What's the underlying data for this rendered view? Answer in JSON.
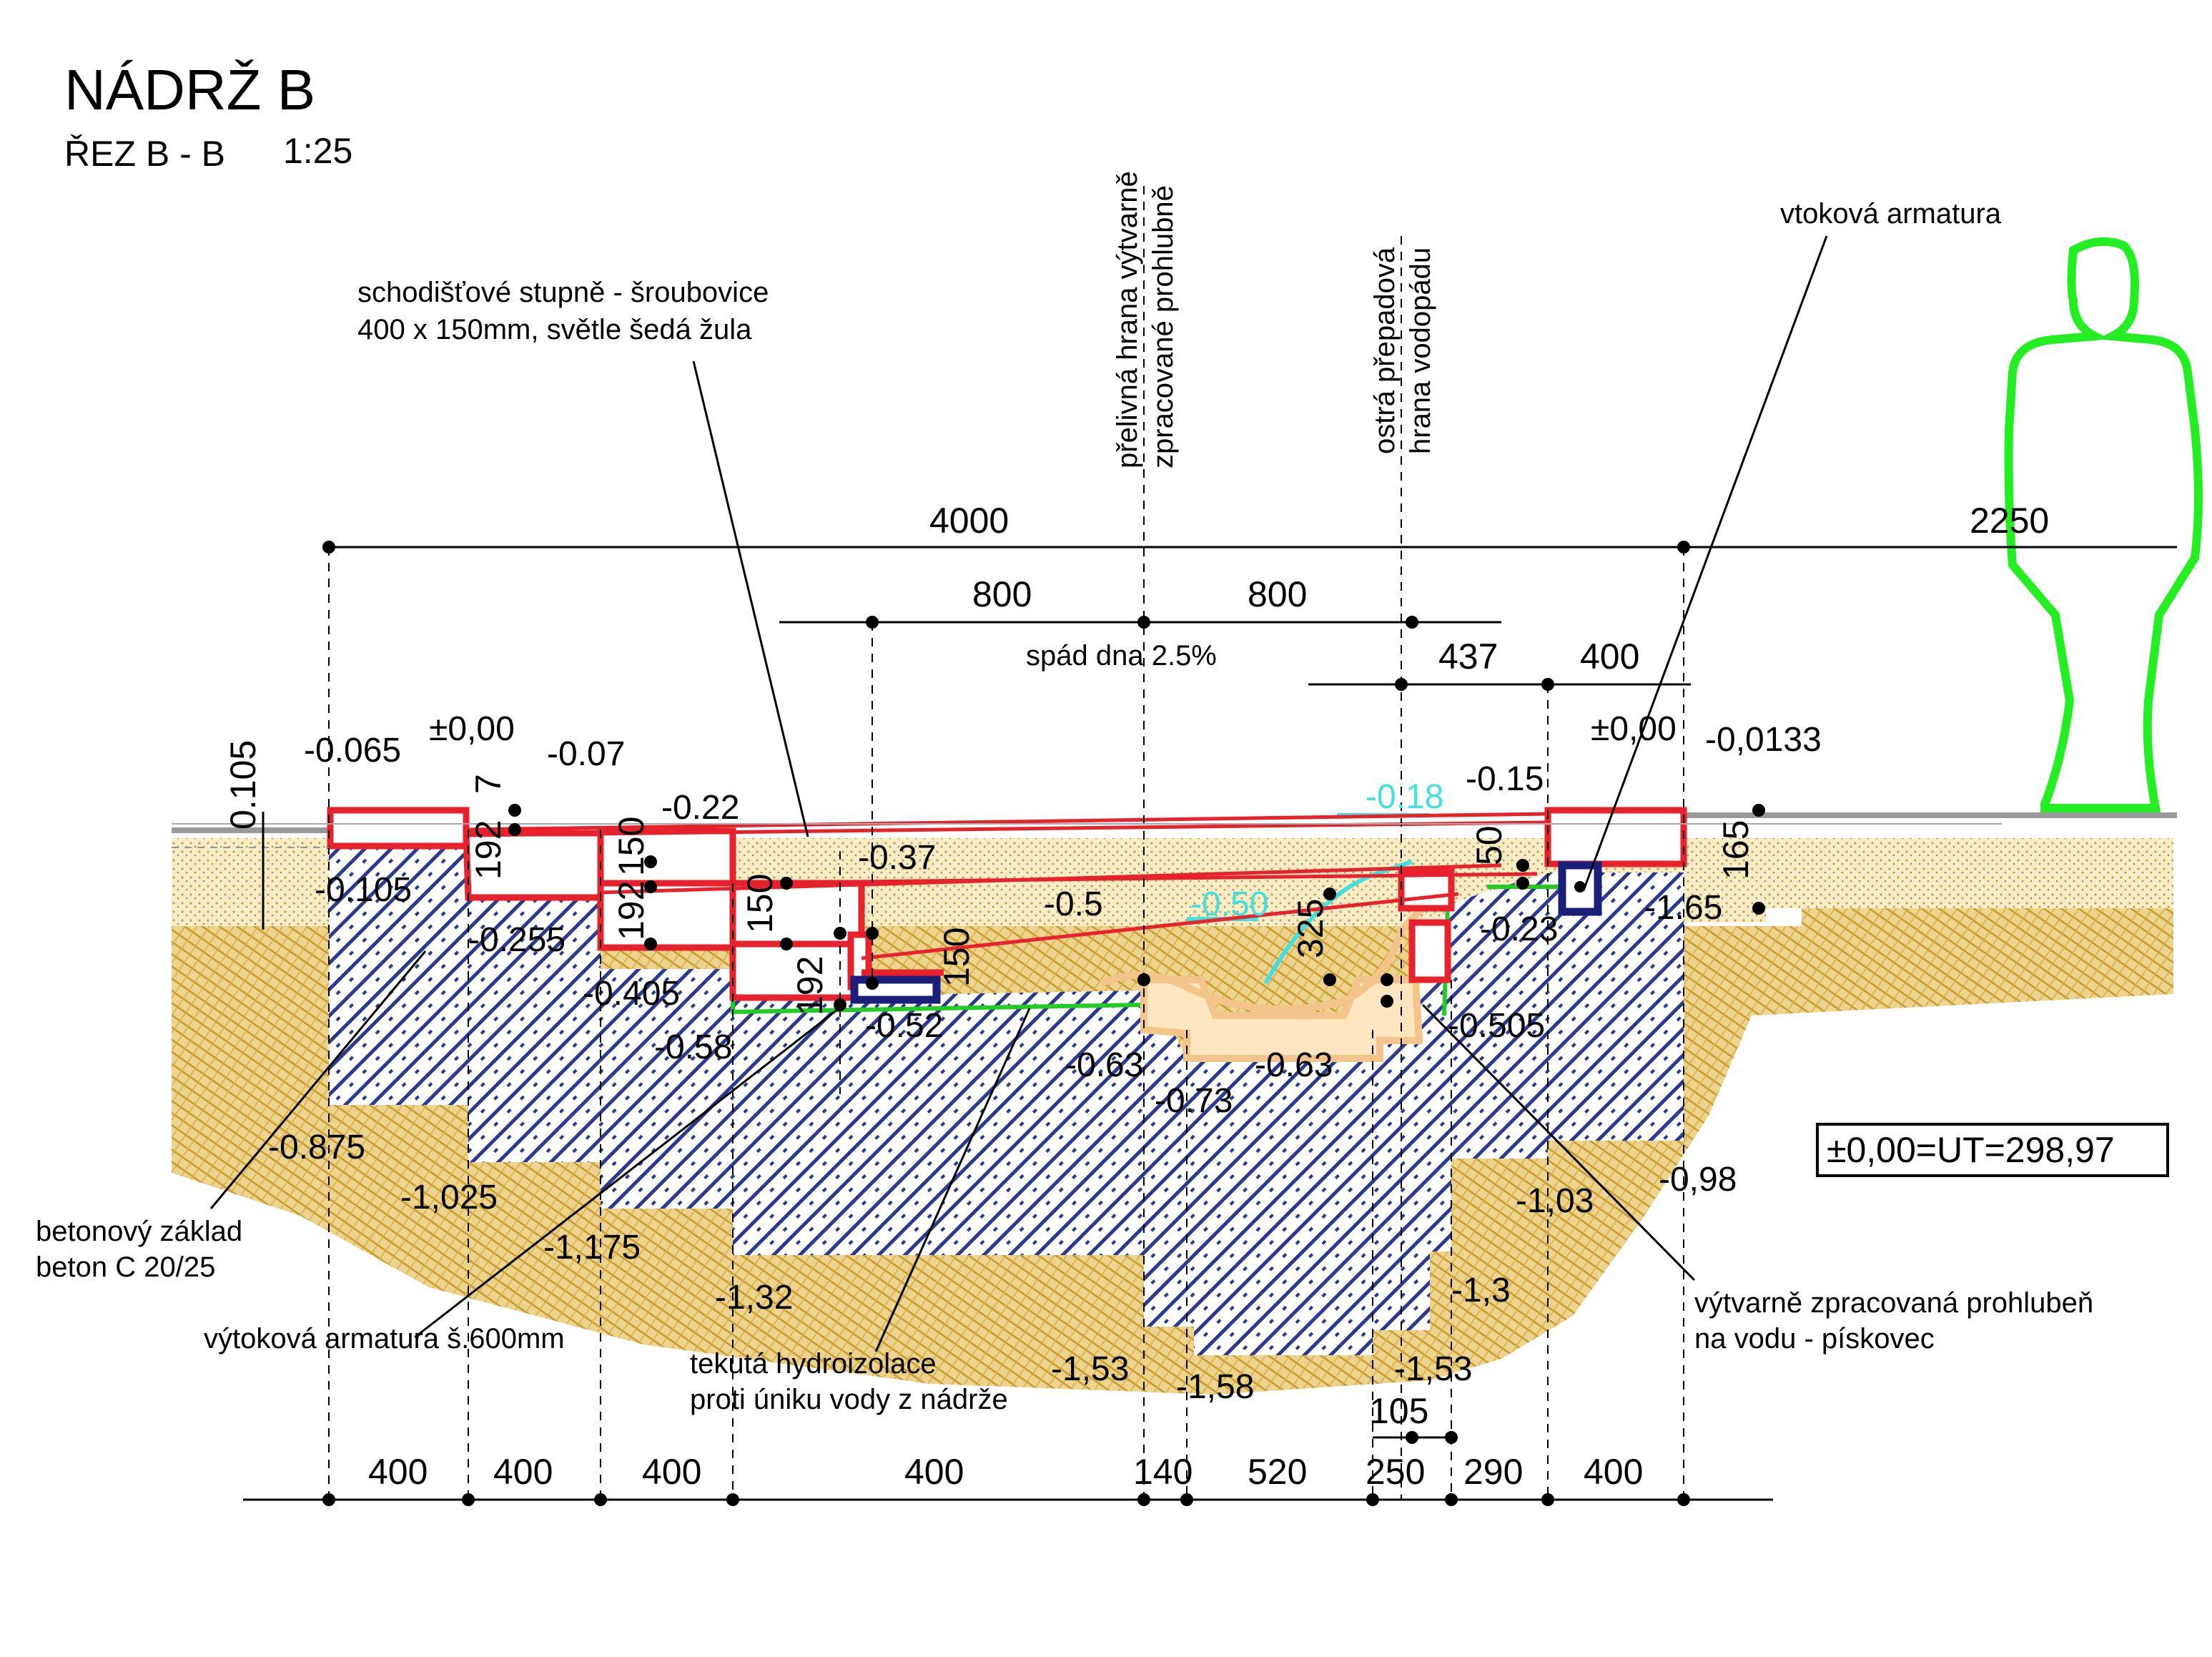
{
  "title": {
    "main": "NÁDRŽ B",
    "section": "ŘEZ B - B",
    "scale": "1:25"
  },
  "colors": {
    "step_outline": "#e8222c",
    "concrete_hatch": "#2b3a8f",
    "soil": "#d9b65c",
    "sand": "#e8d49a",
    "waterproofing": "#22cc22",
    "human": "#22ee22",
    "cyan": "#44e0e0",
    "fitting": "#1b1f7a",
    "sandstone": "#f4c58a"
  },
  "reference_note": "±0,00=UT=298,97",
  "annotations": {
    "stairs_line1": "schodišťové stupně - šroubovice",
    "stairs_line2": "400 x 150mm, světle šedá žula",
    "overflow_edge_line1": "přelivná hrana výtvarně",
    "overflow_edge_line2": "zpracované prohlubně",
    "sharp_edge_line1": "ostrá přepadová",
    "sharp_edge_line2": "hrana vodopádu",
    "inlet": "vtoková armatura",
    "foundation_line1": "betonový základ",
    "foundation_line2": "beton C 20/25",
    "outlet": "výtoková armatura š.600mm",
    "waterproof_line1": "tekutá hydroizolace",
    "waterproof_line2": "proti úniku vody z nádrže",
    "depression_line1": "výtvarně zpracovaná prohlubeň",
    "depression_line2": "na vodu - pískovec",
    "slope": "spád dna 2.5%"
  },
  "dimensions_top": {
    "overall": "4000",
    "right": "2250",
    "mid_left": "800",
    "mid_right": "800",
    "d437": "437",
    "d400": "400"
  },
  "dimensions_bottom": [
    "400",
    "400",
    "400",
    "400",
    "140",
    "520",
    "250",
    "290",
    "400"
  ],
  "dimension_105": "105",
  "vertical_dims": {
    "v0105": "0.105",
    "v7": "7",
    "v192a": "192",
    "v150a": "150",
    "v192b": "192",
    "v150b": "150",
    "v192c": "192",
    "v150c": "150",
    "v325": "325",
    "v50": "50",
    "v165": "165"
  },
  "elevations": {
    "e_065": "-0.065",
    "e_000_left": "±0,00",
    "e_07": "-0.07",
    "e_22": "-0.22",
    "e_37": "-0.37",
    "e_5": "-0.5",
    "e_15": "-0.15",
    "e_000_right": "±0,00",
    "e_0133": "-0,0133",
    "e_18": "-0.18",
    "e_50": "-0.50",
    "e_105": "-0.105",
    "e_255": "-0.255",
    "e_405": "-0.405",
    "e_58": "-0.58",
    "e_52": "-0.52",
    "e_63a": "-0.63",
    "e_73": "-0.73",
    "e_63b": "-0.63",
    "e_505": "-0.505",
    "e_23": "-0.23",
    "e_165": "-1.65",
    "e_875": "-0.875",
    "e_1025": "-1,025",
    "e_1175": "-1,175",
    "e_132": "-1,32",
    "e_153a": "-1,53",
    "e_158": "-1,58",
    "e_153b": "-1,53",
    "e_13": "-1,3",
    "e_103": "-1,03",
    "e_098": "-0,98"
  }
}
